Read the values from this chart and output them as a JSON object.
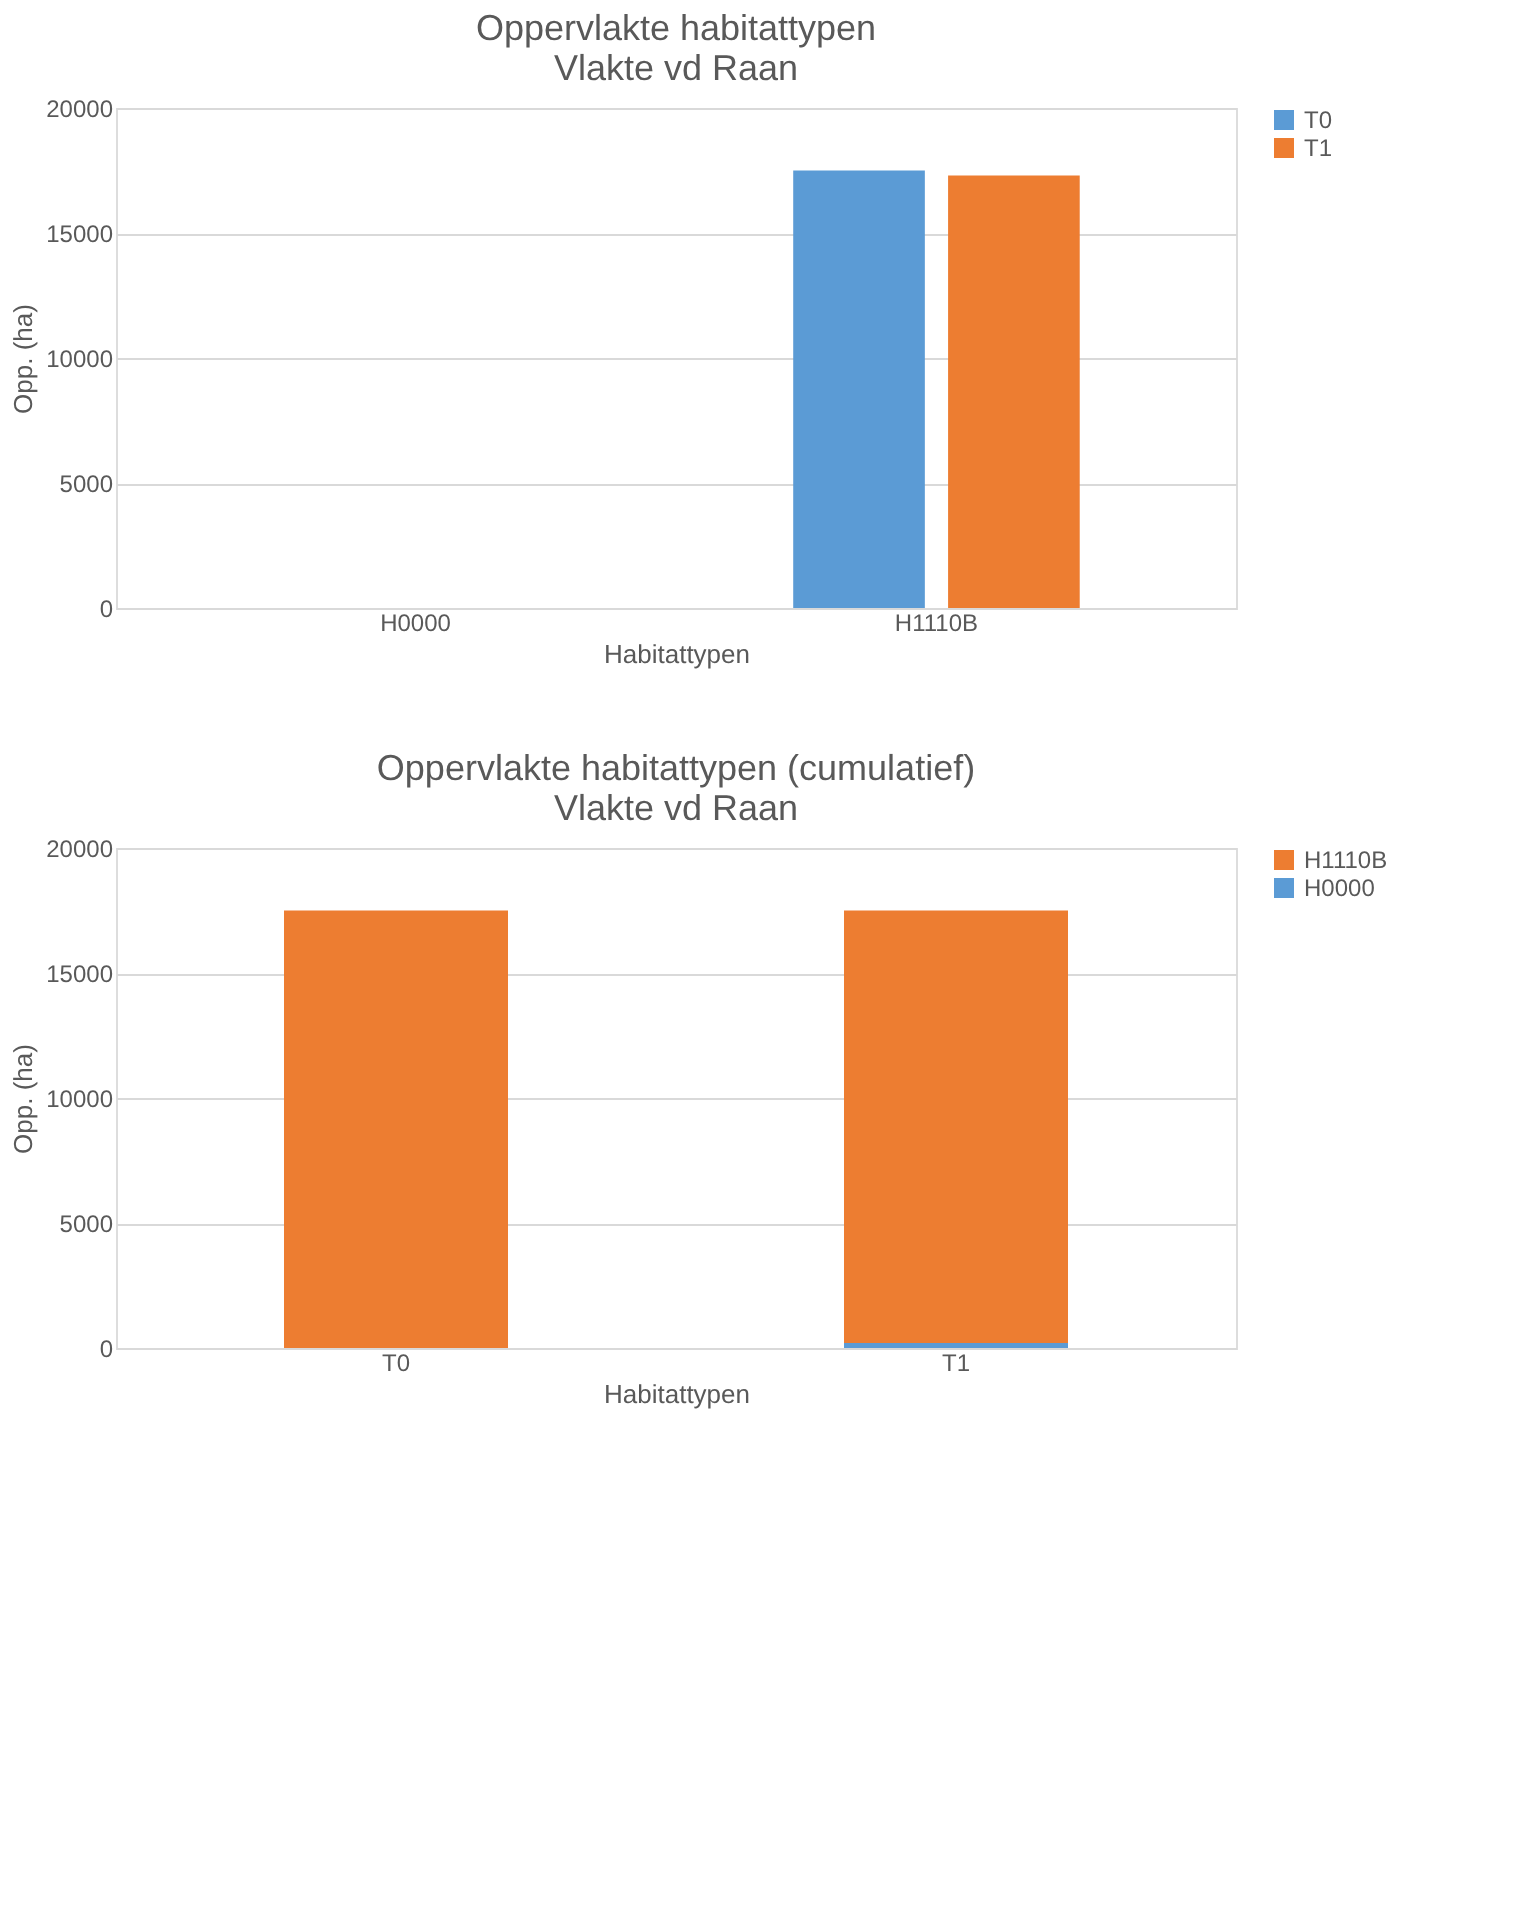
{
  "chart_data": [
    {
      "type": "bar",
      "title": [
        "Oppervlakte habitattypen",
        "Vlakte vd Raan"
      ],
      "xlabel": "Habitattypen",
      "ylabel": "Opp. (ha)",
      "categories": [
        "H0000",
        "H1110B"
      ],
      "series": [
        {
          "name": "T0",
          "color": "#5b9bd5",
          "values": [
            0,
            17500
          ]
        },
        {
          "name": "T1",
          "color": "#ed7d31",
          "values": [
            0,
            17300
          ]
        }
      ],
      "ylim": [
        0,
        20000
      ],
      "yticks": [
        0,
        5000,
        10000,
        15000,
        20000
      ],
      "grid": "y",
      "legend": "right"
    },
    {
      "type": "bar",
      "stacked": true,
      "title": [
        "Oppervlakte habitattypen (cumulatief)",
        "Vlakte vd Raan"
      ],
      "xlabel": "Habitattypen",
      "ylabel": "Opp. (ha)",
      "categories": [
        "T0",
        "T1"
      ],
      "series": [
        {
          "name": "H0000",
          "color": "#5b9bd5",
          "values": [
            0,
            200
          ]
        },
        {
          "name": "H1110B",
          "color": "#ed7d31",
          "values": [
            17500,
            17300
          ]
        }
      ],
      "ylim": [
        0,
        20000
      ],
      "yticks": [
        0,
        5000,
        10000,
        15000,
        20000
      ],
      "grid": "y",
      "legend": "right"
    }
  ]
}
